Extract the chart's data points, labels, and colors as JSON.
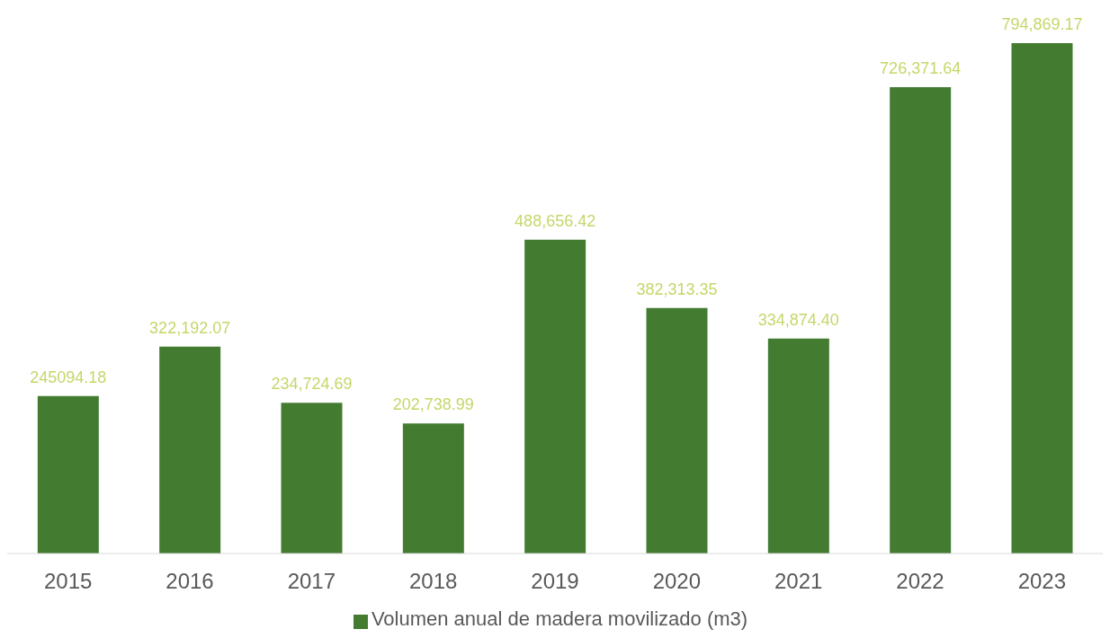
{
  "chart_data": {
    "type": "bar",
    "categories": [
      "2015",
      "2016",
      "2017",
      "2018",
      "2019",
      "2020",
      "2021",
      "2022",
      "2023"
    ],
    "series": [
      {
        "name": "Volumen anual de madera movilizado (m3)",
        "color": "#437c31",
        "values": [
          245094.18,
          322192.07,
          234724.69,
          202738.99,
          488656.42,
          382313.35,
          334874.4,
          726371.64,
          794869.17
        ],
        "value_labels": [
          "245094.18",
          "322,192.07",
          "234,724.69",
          "202,738.99",
          "488,656.42",
          "382,313.35",
          "334,874.40",
          "726,371.64",
          "794,869.17"
        ]
      }
    ],
    "legend": "bottom",
    "grid": false
  }
}
